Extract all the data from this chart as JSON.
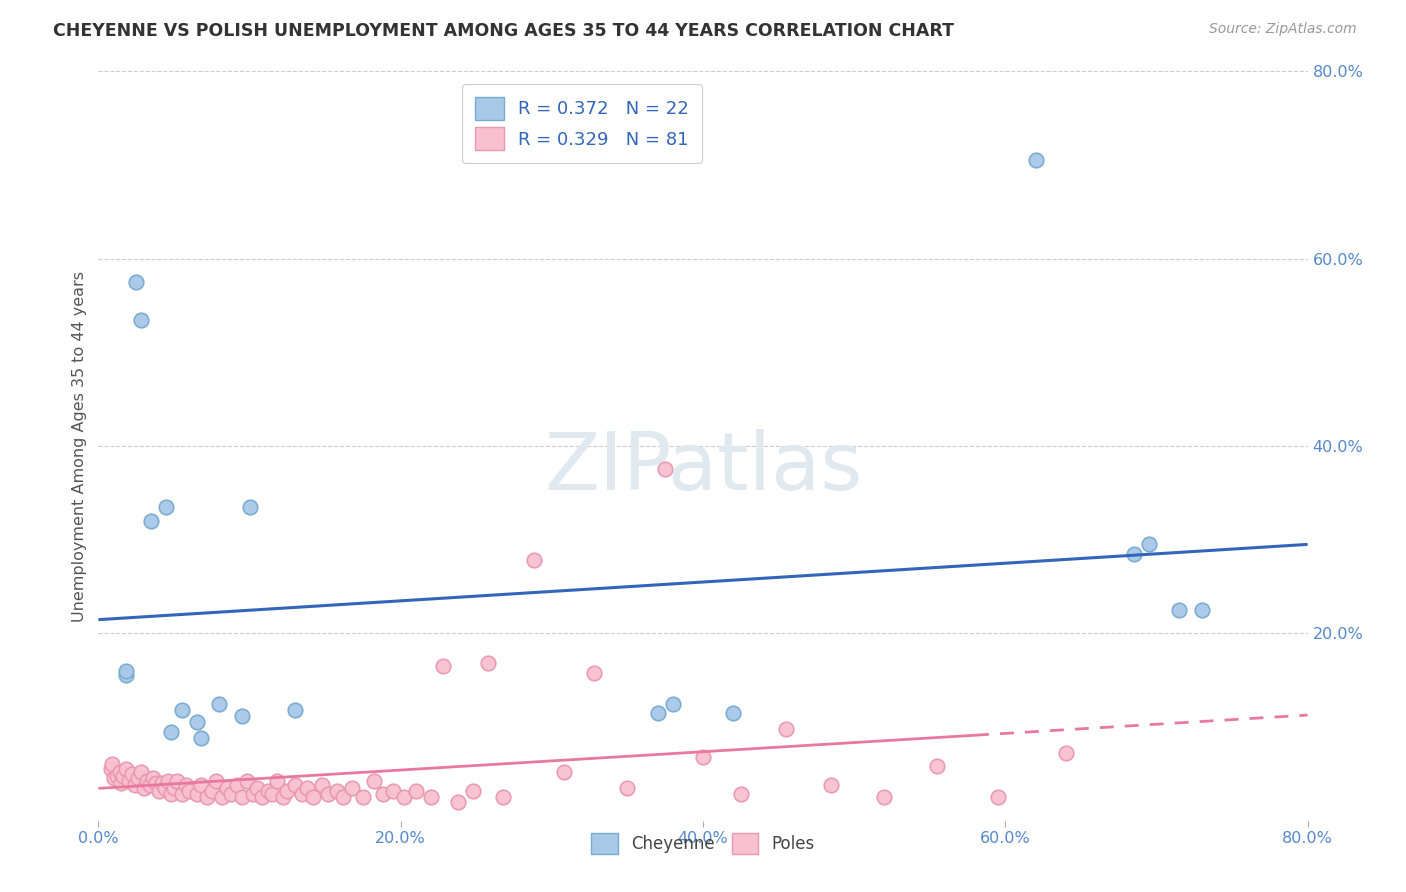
{
  "title": "CHEYENNE VS POLISH UNEMPLOYMENT AMONG AGES 35 TO 44 YEARS CORRELATION CHART",
  "source": "Source: ZipAtlas.com",
  "ylabel": "Unemployment Among Ages 35 to 44 years",
  "xlim": [
    0.0,
    0.8
  ],
  "ylim": [
    0.0,
    0.8
  ],
  "xticks": [
    0.0,
    0.2,
    0.4,
    0.6,
    0.8
  ],
  "yticks": [
    0.2,
    0.4,
    0.6,
    0.8
  ],
  "xticklabels": [
    "0.0%",
    "20.0%",
    "40.0%",
    "60.0%",
    "80.0%"
  ],
  "yticklabels": [
    "20.0%",
    "40.0%",
    "60.0%",
    "80.0%"
  ],
  "grid_color": "#cccccc",
  "background_color": "#ffffff",
  "cheyenne_color": "#a8c8e8",
  "cheyenne_edge": "#7aaad0",
  "poles_color": "#f8c0d0",
  "poles_edge": "#e898b0",
  "cheyenne_line_color": "#3366bb",
  "poles_line_color": "#e878a0",
  "cheyenne_legend_label": "R = 0.372   N = 22",
  "poles_legend_label": "R = 0.329   N = 81",
  "cheyenne_label": "Cheyenne",
  "poles_label": "Poles",
  "cheyenne_x": [
    0.018,
    0.018,
    0.025,
    0.028,
    0.035,
    0.045,
    0.048,
    0.055,
    0.065,
    0.068,
    0.08,
    0.095,
    0.1,
    0.13,
    0.37,
    0.38,
    0.42,
    0.62,
    0.685,
    0.695,
    0.715,
    0.73
  ],
  "cheyenne_y": [
    0.155,
    0.16,
    0.575,
    0.535,
    0.32,
    0.335,
    0.095,
    0.118,
    0.105,
    0.088,
    0.125,
    0.112,
    0.335,
    0.118,
    0.115,
    0.125,
    0.115,
    0.705,
    0.285,
    0.295,
    0.225,
    0.225
  ],
  "poles_x": [
    0.008,
    0.009,
    0.01,
    0.012,
    0.014,
    0.015,
    0.016,
    0.018,
    0.02,
    0.022,
    0.024,
    0.026,
    0.028,
    0.03,
    0.032,
    0.034,
    0.036,
    0.038,
    0.04,
    0.042,
    0.044,
    0.046,
    0.048,
    0.05,
    0.052,
    0.055,
    0.058,
    0.06,
    0.065,
    0.068,
    0.072,
    0.075,
    0.078,
    0.082,
    0.085,
    0.088,
    0.092,
    0.095,
    0.098,
    0.102,
    0.105,
    0.108,
    0.112,
    0.115,
    0.118,
    0.122,
    0.125,
    0.13,
    0.135,
    0.138,
    0.142,
    0.148,
    0.152,
    0.158,
    0.162,
    0.168,
    0.175,
    0.182,
    0.188,
    0.195,
    0.202,
    0.21,
    0.22,
    0.228,
    0.238,
    0.248,
    0.258,
    0.268,
    0.288,
    0.308,
    0.328,
    0.35,
    0.375,
    0.4,
    0.425,
    0.455,
    0.485,
    0.52,
    0.555,
    0.595,
    0.64
  ],
  "poles_y": [
    0.055,
    0.06,
    0.045,
    0.048,
    0.052,
    0.04,
    0.048,
    0.055,
    0.042,
    0.05,
    0.038,
    0.045,
    0.052,
    0.035,
    0.042,
    0.038,
    0.045,
    0.04,
    0.032,
    0.04,
    0.035,
    0.042,
    0.028,
    0.035,
    0.042,
    0.028,
    0.038,
    0.032,
    0.028,
    0.038,
    0.025,
    0.032,
    0.042,
    0.025,
    0.035,
    0.028,
    0.038,
    0.025,
    0.042,
    0.028,
    0.035,
    0.025,
    0.032,
    0.028,
    0.042,
    0.025,
    0.032,
    0.038,
    0.028,
    0.035,
    0.025,
    0.038,
    0.028,
    0.032,
    0.025,
    0.035,
    0.025,
    0.042,
    0.028,
    0.032,
    0.025,
    0.032,
    0.025,
    0.165,
    0.02,
    0.032,
    0.168,
    0.025,
    0.278,
    0.052,
    0.158,
    0.035,
    0.375,
    0.068,
    0.028,
    0.098,
    0.038,
    0.025,
    0.058,
    0.025,
    0.072
  ],
  "poles_trendline_cutoff": 0.58,
  "cheyenne_trendline_y0": 0.155,
  "cheyenne_trendline_y1": 0.375,
  "poles_trendline_y0": 0.028,
  "poles_trendline_y1": 0.155
}
